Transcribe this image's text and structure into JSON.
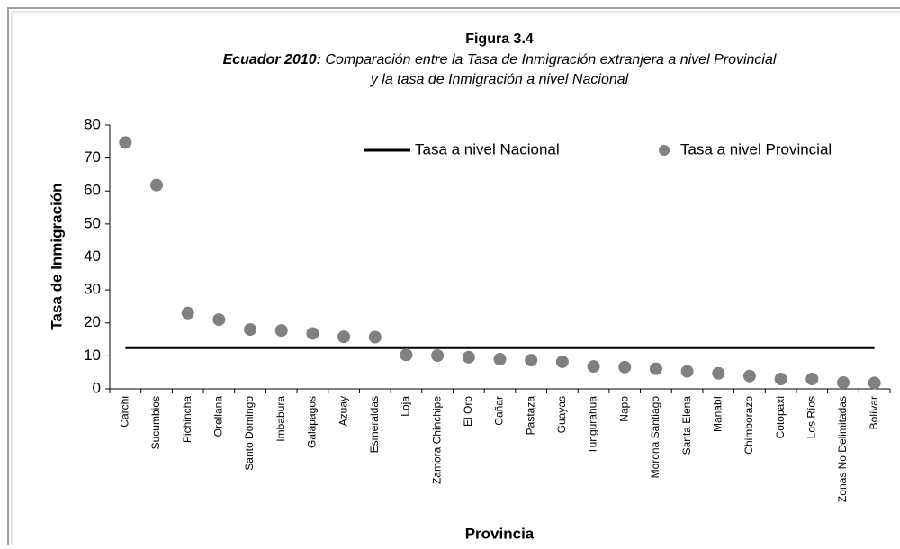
{
  "chart_data": {
    "type": "scatter",
    "title": "Figura 3.4",
    "subtitle_lead": "Ecuador 2010:",
    "subtitle_line1": "Comparación entre la Tasa de Inmigración extranjera a nivel Provincial",
    "subtitle_line2": "y la tasa de Inmigración a nivel Nacional",
    "x_label": "Provincia",
    "y_label": "Tasa de Inmigración",
    "categories": [
      "Carchi",
      "Sucumbios",
      "Pichincha",
      "Orellana",
      "Santo Domingo",
      "Imbabura",
      "Galápagos",
      "Azuay",
      "Esmeraldas",
      "Loja",
      "Zamora Chinchipe",
      "El Oro",
      "Cañar",
      "Pastaza",
      "Guayas",
      "Tungurahua",
      "Napo",
      "Morona Santiago",
      "Santa Elena",
      "Manabí",
      "Chimborazo",
      "Cotopaxi",
      "Los Ríos",
      "Zonas No Delimitadas",
      "Bolívar"
    ],
    "series": [
      {
        "name": "Tasa a nivel Provincial",
        "color": "#808080",
        "values": [
          74.7,
          61.8,
          23,
          21,
          18,
          17.7,
          16.8,
          15.8,
          15.7,
          10.3,
          10.1,
          9.6,
          9,
          8.7,
          8.2,
          6.8,
          6.6,
          6.1,
          5.3,
          4.7,
          3.9,
          3,
          3,
          1.9,
          1.8
        ]
      }
    ],
    "reference_line": {
      "name": "Tasa a nivel Nacional",
      "color": "#000000",
      "value": 12.5
    },
    "ylim": [
      0,
      80
    ],
    "yticks": [
      0,
      10,
      20,
      30,
      40,
      50,
      60,
      70,
      80
    ],
    "legend": "top-right"
  }
}
